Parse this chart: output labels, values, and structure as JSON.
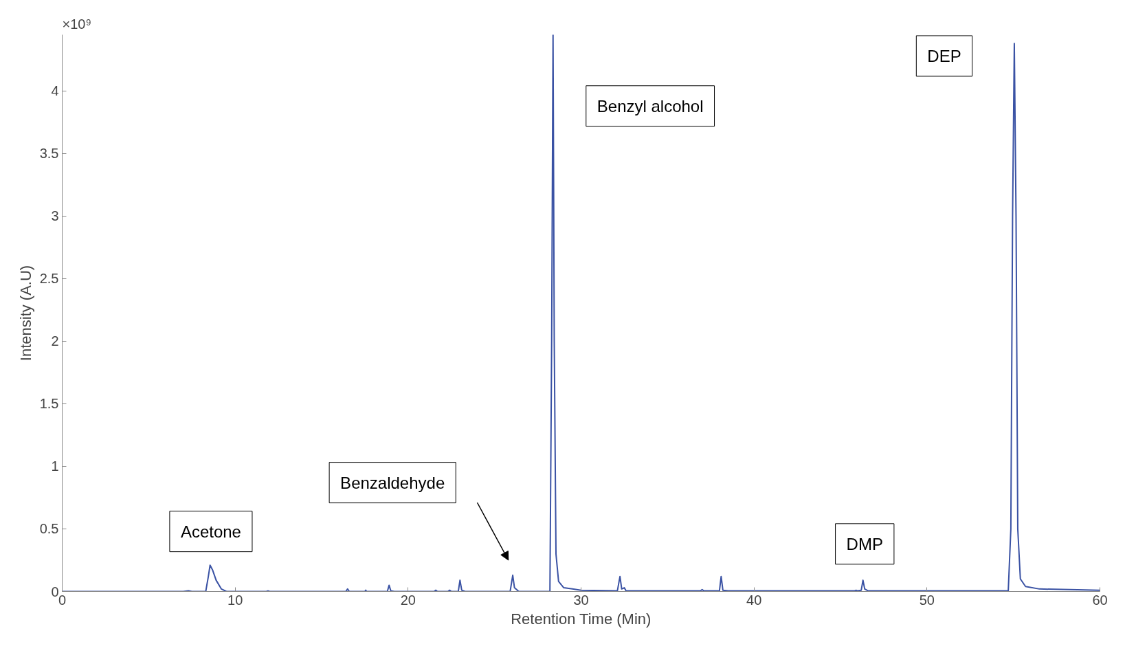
{
  "chart_data": {
    "type": "line",
    "xlabel": "Retention Time (Min)",
    "ylabel": "Intensity (A.U)",
    "xlim": [
      0,
      60
    ],
    "ylim": [
      0,
      4.45
    ],
    "xticks": [
      0,
      10,
      20,
      30,
      40,
      50,
      60
    ],
    "yticks": [
      0,
      0.5,
      1,
      1.5,
      2,
      2.5,
      3,
      3.5,
      4
    ],
    "grid": false,
    "series": [
      {
        "color": "#3a52a4",
        "x": [
          0,
          7,
          7.3,
          7.5,
          8.3,
          8.45,
          8.55,
          8.7,
          8.9,
          9.2,
          9.5,
          11.8,
          11.9,
          12,
          16.4,
          16.5,
          16.6,
          17.5,
          17.55,
          17.6,
          18.8,
          18.9,
          19.0,
          19.2,
          21.5,
          21.6,
          21.7,
          22.3,
          22.4,
          22.5,
          22.9,
          23.0,
          23.1,
          23.3,
          25.9,
          26.05,
          26.15,
          26.4,
          28.2,
          28.3,
          28.38,
          28.45,
          28.55,
          28.7,
          29.0,
          29.5,
          30,
          32.1,
          32.25,
          32.35,
          32.5,
          32.6,
          33,
          36.9,
          37.0,
          37.1,
          38.0,
          38.1,
          38.2,
          38.5,
          45.8,
          45.9,
          46.0,
          46.2,
          46.3,
          46.4,
          46.6,
          54.7,
          54.85,
          54.95,
          55.05,
          55.15,
          55.25,
          55.4,
          55.7,
          56.5,
          60
        ],
        "values": [
          0,
          0,
          0.005,
          0,
          0,
          0.12,
          0.21,
          0.17,
          0.09,
          0.02,
          0,
          0,
          0.005,
          0,
          0,
          0.02,
          0,
          0,
          0.01,
          0,
          0,
          0.05,
          0.005,
          0,
          0,
          0.01,
          0,
          0,
          0.01,
          0,
          0,
          0.09,
          0.01,
          0,
          0,
          0.13,
          0.03,
          0,
          0,
          2.0,
          4.45,
          2.0,
          0.3,
          0.08,
          0.03,
          0.02,
          0.01,
          0.005,
          0.12,
          0.02,
          0.03,
          0.005,
          0.005,
          0.005,
          0.015,
          0.005,
          0.005,
          0.12,
          0.01,
          0.005,
          0.005,
          0.01,
          0.005,
          0.01,
          0.09,
          0.02,
          0.005,
          0.005,
          0.5,
          3.0,
          4.38,
          3.0,
          0.5,
          0.1,
          0.04,
          0.02,
          0.01
        ]
      }
    ],
    "annotations": [
      "×10⁹",
      "Acetone",
      "Benzaldehyde",
      "Benzyl alcohol",
      "DEP",
      "DMP"
    ]
  }
}
